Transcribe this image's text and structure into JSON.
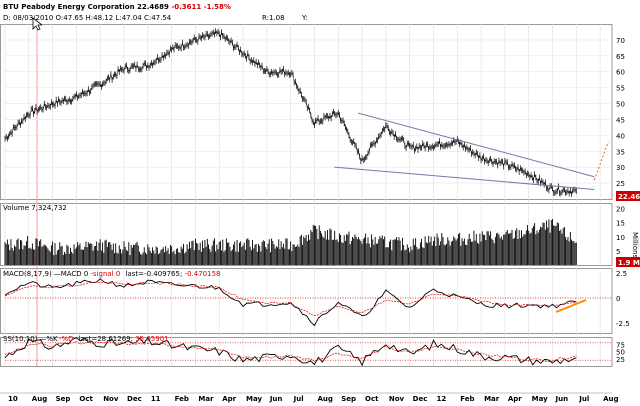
{
  "header": {
    "symbol": "BTU",
    "name": "Peabody Energy Corporation",
    "last": "22.4689",
    "change": "-0.3611",
    "change_pct": "-1.58%",
    "ohlc": "D: 08/03/2010 O:47.65 H:48.12 L:47.04 C:47.54",
    "r_label": "R:1.08",
    "y_label": "Y:"
  },
  "colors": {
    "price": "#000000",
    "down": "#cc0000",
    "trendline": "#7777aa",
    "projection": "#ff5533",
    "cursor": "#ff9999",
    "price_tag_bg": "#cc0000",
    "signal": "#dd0000",
    "dline": "#dd0000",
    "ref_line": "#cc0000",
    "divergence": "#ff8800"
  },
  "price_tag": "22.46",
  "volume": {
    "label": "Volume 7,324,732",
    "unit_label": "Millions",
    "tag": "1.9 M"
  },
  "macd": {
    "label_prefix": "MACD(8,17,9)",
    "macd_name": "MACD 0",
    "signal_name": "signal 0",
    "last_text": "last=-0.409765; ",
    "last2_text": "-0.470158"
  },
  "stoch": {
    "label_prefix": "SS(10,10)",
    "k_name": "%K",
    "d_name": "%D",
    "last_text": "last=28.61269; ",
    "last2_text": "35.65901"
  },
  "chart_data": [
    {
      "type": "line",
      "title": "BTU Peabody Energy Corporation",
      "x": [
        "2010-07",
        "2010-08",
        "2010-09",
        "2010-10",
        "2010-11",
        "2010-12",
        "2011-01",
        "2011-02",
        "2011-03",
        "2011-04",
        "2011-05",
        "2011-06",
        "2011-07",
        "2011-08",
        "2011-09",
        "2011-10",
        "2011-11",
        "2011-12",
        "2012-01",
        "2012-02",
        "2012-03",
        "2012-04",
        "2012-05",
        "2012-06",
        "2012-07"
      ],
      "values": [
        39,
        47,
        50,
        52,
        56,
        61,
        62,
        67,
        70,
        72,
        66,
        60,
        60,
        44,
        47,
        32,
        43,
        36,
        37,
        38,
        33,
        31,
        28,
        23,
        22.47
      ],
      "ylim": [
        20,
        75
      ],
      "yticks": [
        25,
        30,
        35,
        40,
        45,
        50,
        55,
        60,
        65,
        70
      ],
      "x_tick_labels": [
        "10",
        "Aug",
        "Sep",
        "Oct",
        "Nov",
        "Dec",
        "11",
        "Feb",
        "Mar",
        "Apr",
        "May",
        "Jun",
        "Jul",
        "Aug",
        "Sep",
        "Oct",
        "Nov",
        "Dec",
        "12",
        "Feb",
        "Mar",
        "Apr",
        "May",
        "Jun",
        "Jul",
        "Aug"
      ],
      "trendlines": [
        {
          "from": [
            "2011-10",
            47
          ],
          "to": [
            "2012-07",
            27
          ]
        },
        {
          "from": [
            "2011-09",
            30
          ],
          "to": [
            "2012-07",
            23
          ]
        }
      ],
      "projection": {
        "from": [
          "2012-07",
          26
        ],
        "to": [
          "2012-07",
          38
        ]
      }
    },
    {
      "type": "bar",
      "title": "Volume",
      "ylabel": "Millions",
      "ylim": [
        0,
        22
      ],
      "yticks": [
        5,
        10,
        15,
        20
      ],
      "x": [
        "2010-07",
        "2010-08",
        "2010-09",
        "2010-10",
        "2010-11",
        "2010-12",
        "2011-01",
        "2011-02",
        "2011-03",
        "2011-04",
        "2011-05",
        "2011-06",
        "2011-07",
        "2011-08",
        "2011-09",
        "2011-10",
        "2011-11",
        "2011-12",
        "2012-01",
        "2012-02",
        "2012-03",
        "2012-04",
        "2012-05",
        "2012-06",
        "2012-07"
      ],
      "values": [
        7,
        8,
        6,
        6,
        7,
        6,
        6,
        6,
        7,
        7,
        7,
        7,
        7,
        12,
        10,
        9,
        8,
        7,
        9,
        9,
        10,
        10,
        12,
        14,
        8
      ]
    },
    {
      "type": "line",
      "title": "MACD(8,17,9)",
      "ylim": [
        -3.5,
        3
      ],
      "yticks": [
        2.5,
        0,
        -2.5
      ],
      "series": [
        {
          "name": "MACD",
          "values": [
            0.5,
            1.5,
            1.0,
            1.4,
            1.8,
            1.2,
            1.6,
            1.3,
            1.2,
            1.0,
            -0.6,
            -0.6,
            -0.4,
            -2.5,
            -0.4,
            -2.0,
            0.6,
            -1.0,
            0.9,
            0.1,
            -0.6,
            -0.8,
            -0.7,
            -0.8,
            -0.41
          ]
        },
        {
          "name": "signal",
          "values": [
            0.3,
            1.2,
            1.1,
            1.3,
            1.6,
            1.4,
            1.5,
            1.4,
            1.2,
            1.1,
            -0.2,
            -0.5,
            -0.5,
            -1.8,
            -0.9,
            -1.5,
            -0.2,
            -0.6,
            0.4,
            0.3,
            -0.3,
            -0.7,
            -0.7,
            -0.8,
            -0.47
          ]
        }
      ]
    },
    {
      "type": "line",
      "title": "SS(10,10)",
      "ylim": [
        0,
        100
      ],
      "yticks": [
        75,
        50,
        25
      ],
      "reference_lines": [
        80,
        20
      ],
      "series": [
        {
          "name": "%K",
          "values": [
            30,
            85,
            65,
            90,
            80,
            75,
            85,
            70,
            60,
            50,
            20,
            30,
            40,
            10,
            60,
            15,
            80,
            40,
            75,
            60,
            35,
            30,
            20,
            15,
            28.61
          ]
        },
        {
          "name": "%D",
          "values": [
            40,
            75,
            70,
            80,
            82,
            78,
            80,
            72,
            65,
            55,
            30,
            30,
            35,
            20,
            45,
            25,
            65,
            45,
            65,
            60,
            40,
            32,
            22,
            20,
            35.66
          ]
        }
      ]
    }
  ]
}
